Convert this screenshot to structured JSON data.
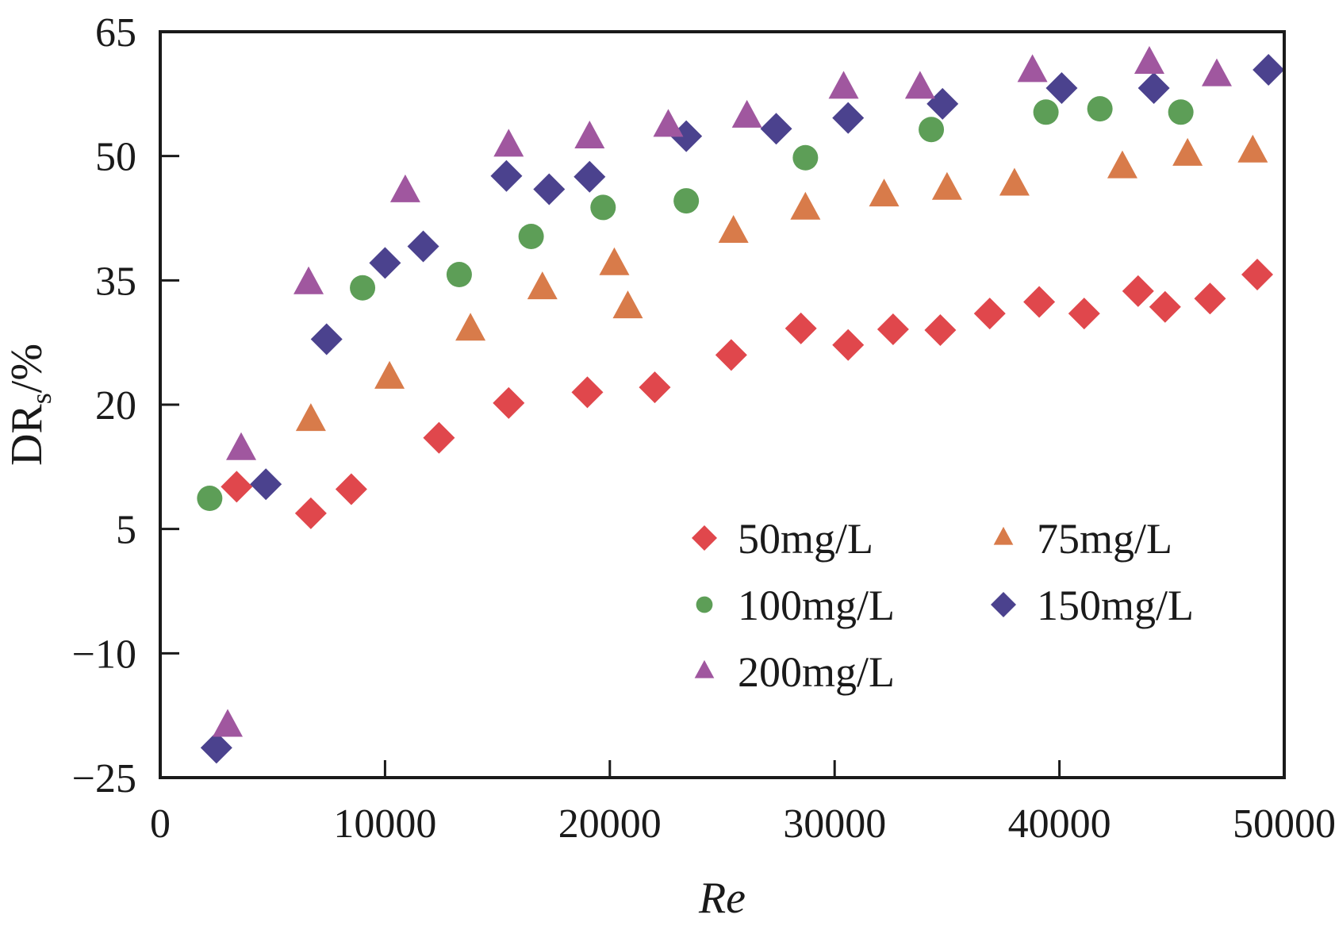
{
  "chart_data": {
    "type": "scatter",
    "title": "",
    "xlabel": "Re",
    "ylabel_main": "DR",
    "ylabel_sub": "s",
    "ylabel_suffix": "/%",
    "xlim": [
      0,
      50000
    ],
    "ylim": [
      -25,
      65
    ],
    "xticks": [
      0,
      10000,
      20000,
      30000,
      40000,
      50000
    ],
    "xtick_labels": [
      "0",
      "10000",
      "20000",
      "30000",
      "40000",
      "50000"
    ],
    "yticks": [
      -25,
      -10,
      5,
      20,
      35,
      50,
      65
    ],
    "ytick_labels": [
      "−25",
      "−10",
      "5",
      "20",
      "35",
      "50",
      "65"
    ],
    "grid": false,
    "legend_position": "lower-right",
    "series": [
      {
        "name": "50mg/L",
        "marker": "diamond",
        "color": "#e0474c",
        "x": [
          3400,
          6700,
          8500,
          12400,
          15500,
          19000,
          22000,
          25400,
          28500,
          30600,
          32600,
          34700,
          36900,
          39100,
          41100,
          43500,
          44700,
          46700,
          48800
        ],
        "y": [
          10.1,
          6.9,
          9.8,
          16.0,
          20.2,
          21.5,
          22.1,
          26.0,
          29.2,
          27.2,
          29.1,
          29.0,
          31.0,
          32.4,
          31.0,
          33.7,
          31.8,
          32.8,
          35.7
        ]
      },
      {
        "name": "75mg/L",
        "marker": "triangle",
        "color": "#d87b4a",
        "x": [
          6700,
          10200,
          13800,
          17000,
          20200,
          20800,
          25500,
          28700,
          32200,
          35000,
          38000,
          42800,
          45700,
          48600
        ],
        "y": [
          18.1,
          23.2,
          29.0,
          34.0,
          36.9,
          31.7,
          40.8,
          43.6,
          45.2,
          46.0,
          46.5,
          48.6,
          50.1,
          50.5
        ]
      },
      {
        "name": "100mg/L",
        "marker": "circle",
        "color": "#5d9e57",
        "x": [
          2200,
          9000,
          13300,
          16500,
          19700,
          23400,
          28700,
          34300,
          39400,
          41800,
          45400
        ],
        "y": [
          8.7,
          34.1,
          35.7,
          40.3,
          43.8,
          44.6,
          49.8,
          53.2,
          55.3,
          55.7,
          55.3
        ]
      },
      {
        "name": "150mg/L",
        "marker": "diamond",
        "color": "#4b428e",
        "x": [
          2500,
          4700,
          7400,
          10000,
          11700,
          15400,
          17300,
          19100,
          23400,
          27400,
          30600,
          34800,
          40100,
          44200,
          49300
        ],
        "y": [
          -21.4,
          10.4,
          27.9,
          37.1,
          39.1,
          47.6,
          46.0,
          47.5,
          52.4,
          53.3,
          54.6,
          56.3,
          58.2,
          58.2,
          60.4
        ]
      },
      {
        "name": "200mg/L",
        "marker": "triangle",
        "color": "#a0579f",
        "x": [
          3000,
          3600,
          6600,
          10900,
          15500,
          19100,
          22600,
          26100,
          30400,
          33800,
          38800,
          44000,
          47000
        ],
        "y": [
          -18.8,
          14.6,
          34.6,
          45.7,
          51.2,
          52.2,
          53.6,
          54.7,
          58.2,
          58.2,
          60.2,
          61.2,
          59.7
        ]
      }
    ],
    "legend": [
      {
        "label": "50mg/L",
        "series": 0
      },
      {
        "label": "75mg/L",
        "series": 1
      },
      {
        "label": "100mg/L",
        "series": 2
      },
      {
        "label": "150mg/L",
        "series": 3
      },
      {
        "label": "200mg/L",
        "series": 4
      }
    ]
  }
}
